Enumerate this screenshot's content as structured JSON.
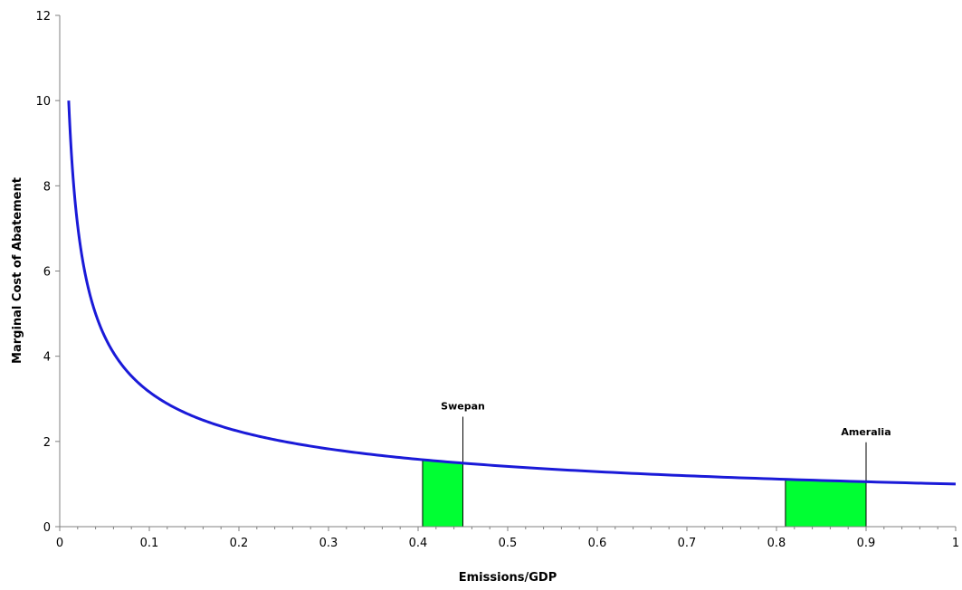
{
  "chart_data": {
    "type": "line",
    "title": "",
    "xlabel": "Emissions/GDP",
    "ylabel": "Marginal Cost of Abatement",
    "xlim": [
      0,
      1
    ],
    "ylim": [
      0,
      12
    ],
    "x_ticks": [
      "0",
      "0.1",
      "0.2",
      "0.3",
      "0.4",
      "0.5",
      "0.6",
      "0.7",
      "0.8",
      "0.9",
      "1"
    ],
    "y_ticks": [
      "0",
      "2",
      "4",
      "6",
      "8",
      "10",
      "12"
    ],
    "grid": false,
    "legend": "none",
    "series": [
      {
        "function": "y = 1/sqrt(x)",
        "x_range": [
          0.01,
          1
        ],
        "points": [
          [
            0.01,
            10
          ],
          [
            0.02,
            7.07
          ],
          [
            0.03,
            5.77
          ],
          [
            0.05,
            4.47
          ],
          [
            0.1,
            3.16
          ],
          [
            0.2,
            2.24
          ],
          [
            0.3,
            1.83
          ],
          [
            0.4,
            1.58
          ],
          [
            0.45,
            1.49
          ],
          [
            0.5,
            1.41
          ],
          [
            0.6,
            1.29
          ],
          [
            0.7,
            1.2
          ],
          [
            0.8,
            1.12
          ],
          [
            0.9,
            1.05
          ],
          [
            1.0,
            1.0
          ]
        ],
        "color": "#1a1ad8"
      }
    ],
    "shaded_regions": [
      {
        "x_from": 0.405,
        "x_to": 0.45,
        "color": "#00ff33"
      },
      {
        "x_from": 0.81,
        "x_to": 0.9,
        "color": "#00ff33"
      }
    ],
    "annotations": [
      {
        "text": "Swepan",
        "x": 0.45,
        "label_y": 2.75
      },
      {
        "text": "Ameralia",
        "x": 0.9,
        "label_y": 2.15
      }
    ]
  }
}
